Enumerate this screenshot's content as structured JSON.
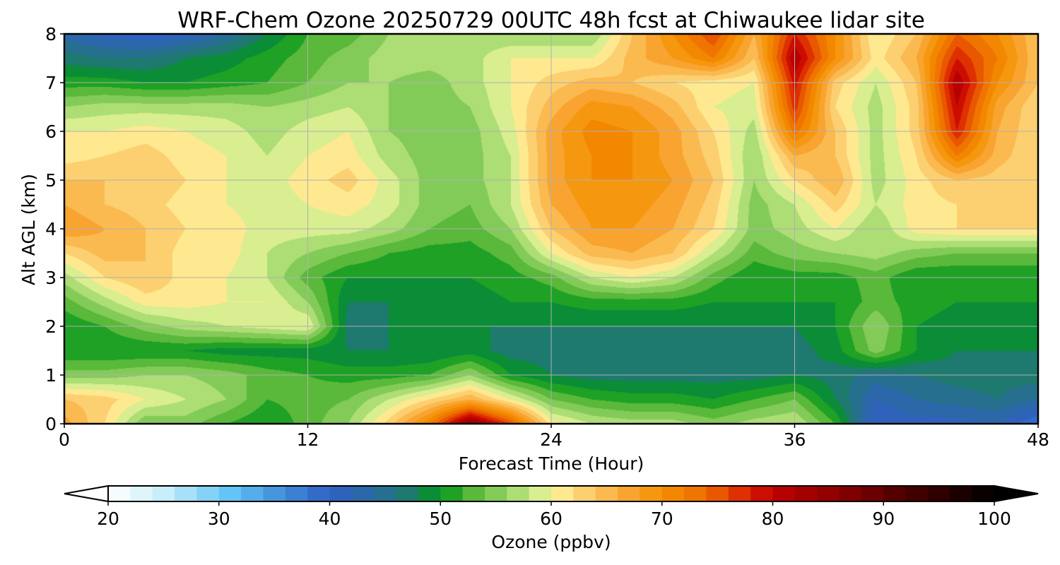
{
  "chart_data": {
    "type": "heatmap",
    "subtype": "filled-contour",
    "title": "WRF-Chem Ozone  20250729 00UTC 48h fcst at Chiwaukee lidar site",
    "xlabel": "Forecast Time (Hour)",
    "ylabel": "Alt AGL (km)",
    "xlim": [
      0,
      48
    ],
    "ylim": [
      0,
      8
    ],
    "xticks": [
      "0",
      "12",
      "24",
      "36",
      "48"
    ],
    "yticks": [
      "0",
      "1",
      "2",
      "3",
      "4",
      "5",
      "6",
      "7",
      "8"
    ],
    "grid": true,
    "colorbar": {
      "label": "Ozone  (ppbv)",
      "orientation": "horizontal",
      "placement": "bottom",
      "range": [
        20,
        100
      ],
      "step": 2,
      "extend": "both",
      "ticks": [
        "20",
        "30",
        "40",
        "50",
        "60",
        "70",
        "80",
        "90",
        "100"
      ],
      "colormap": [
        [
          20,
          "#ffffff"
        ],
        [
          25,
          "#c8eefa"
        ],
        [
          31,
          "#64c4f8"
        ],
        [
          36,
          "#3f8ad8"
        ],
        [
          40,
          "#3060c4"
        ],
        [
          44,
          "#2a6aa0"
        ],
        [
          47,
          "#1e7a6e"
        ],
        [
          50,
          "#00961a"
        ],
        [
          53,
          "#5ab83a"
        ],
        [
          56,
          "#98d468"
        ],
        [
          59,
          "#d8ee90"
        ],
        [
          60,
          "#fff5a0"
        ],
        [
          63,
          "#fcd070"
        ],
        [
          67,
          "#f9a430"
        ],
        [
          70,
          "#f59000"
        ],
        [
          74,
          "#ee6a00"
        ],
        [
          78,
          "#d81c00"
        ],
        [
          80,
          "#c00000"
        ],
        [
          86,
          "#8a0000"
        ],
        [
          92,
          "#4a0000"
        ],
        [
          100,
          "#000000"
        ]
      ]
    },
    "grid_x_hours": [
      0,
      2,
      4,
      6,
      8,
      10,
      12,
      14,
      16,
      18,
      20,
      22,
      24,
      26,
      28,
      30,
      32,
      34,
      36,
      38,
      40,
      42,
      44,
      46,
      48
    ],
    "grid_y_km": [
      0,
      0.5,
      1,
      1.5,
      2,
      2.5,
      3,
      3.5,
      4,
      4.5,
      5,
      5.5,
      6,
      6.5,
      7,
      7.5,
      8
    ],
    "z_ppbv": [
      [
        67,
        62,
        54,
        55,
        52,
        50,
        53,
        56,
        63,
        72,
        86,
        76,
        61,
        58,
        57,
        57,
        55,
        57,
        58,
        52,
        40,
        41,
        41,
        42,
        38
      ],
      [
        64,
        63,
        60,
        58,
        56,
        52,
        53,
        54,
        58,
        62,
        66,
        60,
        54,
        52,
        51,
        51,
        50,
        52,
        54,
        48,
        42,
        44,
        45,
        46,
        44
      ],
      [
        55,
        55,
        56,
        56,
        55,
        53,
        52,
        51,
        51,
        52,
        56,
        50,
        48,
        47,
        47,
        47,
        47,
        47,
        48,
        47,
        45,
        46,
        47,
        47,
        47
      ],
      [
        50,
        50,
        50,
        50,
        49,
        49,
        49,
        48,
        48,
        48,
        49,
        47,
        47,
        47,
        47,
        47,
        47,
        47,
        47,
        49,
        55,
        50,
        48,
        48,
        48
      ],
      [
        50,
        52,
        55,
        57,
        58,
        59,
        60,
        47,
        48,
        48,
        48,
        48,
        48,
        48,
        48,
        48,
        48,
        48,
        48,
        50,
        56,
        50,
        49,
        49,
        49
      ],
      [
        53,
        57,
        61,
        61,
        60,
        60,
        56,
        48,
        48,
        49,
        49,
        50,
        50,
        51,
        51,
        51,
        50,
        50,
        50,
        50,
        53,
        51,
        50,
        50,
        50
      ],
      [
        57,
        62,
        64,
        61,
        60,
        58,
        53,
        50,
        50,
        50,
        50,
        51,
        53,
        58,
        60,
        58,
        53,
        50,
        51,
        51,
        53,
        50,
        50,
        50,
        50
      ],
      [
        62,
        65,
        64,
        61,
        61,
        58,
        56,
        54,
        52,
        51,
        51,
        53,
        60,
        65,
        66,
        64,
        58,
        53,
        55,
        56,
        57,
        55,
        54,
        54,
        54
      ],
      [
        68,
        66,
        64,
        62,
        61,
        59,
        59,
        59,
        57,
        54,
        53,
        56,
        64,
        68,
        68,
        66,
        62,
        55,
        57,
        60,
        56,
        61,
        62,
        62,
        62
      ],
      [
        66,
        64,
        63,
        61,
        60,
        59,
        60,
        61,
        59,
        55,
        54,
        58,
        66,
        69,
        69,
        67,
        63,
        55,
        58,
        63,
        58,
        61,
        62,
        62,
        62
      ],
      [
        64,
        64,
        64,
        62,
        60,
        59,
        61,
        63,
        59,
        55,
        55,
        58,
        67,
        70,
        70,
        68,
        64,
        56,
        62,
        66,
        57,
        61,
        64,
        63,
        62
      ],
      [
        61,
        62,
        63,
        61,
        60,
        58,
        60,
        61,
        57,
        55,
        55,
        58,
        67,
        70,
        70,
        67,
        63,
        56,
        66,
        64,
        57,
        62,
        72,
        65,
        62
      ],
      [
        60,
        60,
        61,
        60,
        59,
        57,
        59,
        60,
        56,
        55,
        55,
        59,
        67,
        71,
        70,
        67,
        62,
        57,
        73,
        64,
        57,
        63,
        78,
        66,
        62
      ],
      [
        56,
        57,
        57,
        57,
        57,
        56,
        57,
        58,
        56,
        55,
        56,
        60,
        65,
        69,
        68,
        65,
        60,
        59,
        77,
        62,
        57,
        63,
        80,
        67,
        62
      ],
      [
        51,
        51,
        50,
        50,
        51,
        52,
        54,
        56,
        56,
        55,
        57,
        60,
        63,
        65,
        64,
        62,
        61,
        60,
        79,
        63,
        58,
        64,
        82,
        70,
        64
      ],
      [
        47,
        46,
        46,
        48,
        49,
        51,
        53,
        55,
        57,
        57,
        57,
        60,
        60,
        60,
        65,
        68,
        72,
        64,
        82,
        70,
        61,
        66,
        78,
        72,
        64
      ],
      [
        43,
        41,
        40,
        41,
        44,
        48,
        52,
        53,
        56,
        57,
        57,
        56,
        56,
        56,
        64,
        70,
        76,
        66,
        78,
        70,
        60,
        64,
        74,
        70,
        64
      ]
    ]
  }
}
